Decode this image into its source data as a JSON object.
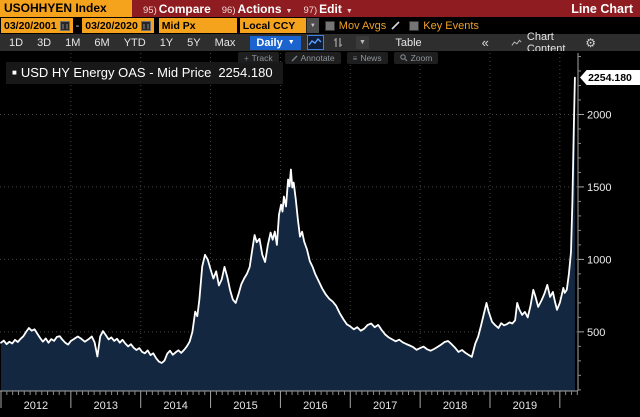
{
  "titlebar": {
    "security": "USOHHYEN Index",
    "menus": [
      {
        "num": "95)",
        "label": "Compare",
        "caret": false
      },
      {
        "num": "96)",
        "label": "Actions",
        "caret": true
      },
      {
        "num": "97)",
        "label": "Edit",
        "caret": true
      }
    ],
    "right_label": "Line Chart"
  },
  "controls": {
    "date_from": "03/20/2001",
    "date_sep": "-",
    "date_to": "03/20/2020",
    "price_field": "Mid Px",
    "currency": "Local CCY",
    "mov_avgs_label": "Mov Avgs",
    "key_events_label": "Key Events"
  },
  "toolbar": {
    "ranges": [
      "1D",
      "3D",
      "1M",
      "6M",
      "YTD",
      "1Y",
      "5Y",
      "Max"
    ],
    "period": "Daily",
    "table_label": "Table",
    "collapse_label": "«",
    "chart_content_label": "Chart Content",
    "icons": [
      "line-chart-icon",
      "bars-icon",
      "caret-down-icon",
      "gear-icon"
    ]
  },
  "chart_tools": [
    {
      "icon": "plus-icon",
      "label": "Track"
    },
    {
      "icon": "pencil-icon",
      "label": "Annotate"
    },
    {
      "icon": "news-lines-icon",
      "label": "News"
    },
    {
      "icon": "magnifier-icon",
      "label": "Zoom"
    }
  ],
  "legend": {
    "series_label": "USD HY Energy OAS - Mid Price",
    "value": "2254.180"
  },
  "colors": {
    "amber": "#f5a21c",
    "menu_red": "#8e1c20",
    "accent_blue": "#1b63cf",
    "area_fill": "#132840",
    "line": "#ffffff",
    "background": "#000000"
  },
  "chart_data": {
    "type": "area",
    "title": "USD HY Energy OAS - Mid Price",
    "last_value": 2254.18,
    "last_value_label": "2254.180",
    "x_unit": "decimal_year",
    "xlim": [
      2012.0,
      2020.26
    ],
    "ylim_displayed": [
      92,
      2424
    ],
    "yticks": [
      500,
      1000,
      1500,
      2000
    ],
    "xtick_years": [
      2012,
      2013,
      2014,
      2015,
      2016,
      2017,
      2018,
      2019
    ],
    "grid": "dotted",
    "legend_position": "top-left",
    "points": [
      [
        2012.0,
        425
      ],
      [
        2012.04,
        440
      ],
      [
        2012.08,
        415
      ],
      [
        2012.12,
        432
      ],
      [
        2012.16,
        420
      ],
      [
        2012.2,
        445
      ],
      [
        2012.24,
        430
      ],
      [
        2012.28,
        452
      ],
      [
        2012.32,
        470
      ],
      [
        2012.36,
        500
      ],
      [
        2012.4,
        527
      ],
      [
        2012.44,
        508
      ],
      [
        2012.48,
        518
      ],
      [
        2012.52,
        488
      ],
      [
        2012.56,
        458
      ],
      [
        2012.6,
        432
      ],
      [
        2012.64,
        455
      ],
      [
        2012.68,
        425
      ],
      [
        2012.72,
        450
      ],
      [
        2012.76,
        438
      ],
      [
        2012.8,
        465
      ],
      [
        2012.84,
        470
      ],
      [
        2012.88,
        445
      ],
      [
        2012.92,
        425
      ],
      [
        2012.96,
        412
      ],
      [
        2013.0,
        438
      ],
      [
        2013.05,
        452
      ],
      [
        2013.1,
        468
      ],
      [
        2013.15,
        452
      ],
      [
        2013.2,
        432
      ],
      [
        2013.25,
        448
      ],
      [
        2013.3,
        468
      ],
      [
        2013.34,
        428
      ],
      [
        2013.38,
        330
      ],
      [
        2013.42,
        468
      ],
      [
        2013.46,
        505
      ],
      [
        2013.5,
        478
      ],
      [
        2013.54,
        448
      ],
      [
        2013.58,
        462
      ],
      [
        2013.62,
        438
      ],
      [
        2013.66,
        452
      ],
      [
        2013.7,
        425
      ],
      [
        2013.74,
        445
      ],
      [
        2013.78,
        420
      ],
      [
        2013.82,
        400
      ],
      [
        2013.86,
        415
      ],
      [
        2013.9,
        390
      ],
      [
        2013.94,
        375
      ],
      [
        2013.98,
        388
      ],
      [
        2014.02,
        362
      ],
      [
        2014.06,
        352
      ],
      [
        2014.1,
        372
      ],
      [
        2014.14,
        340
      ],
      [
        2014.18,
        352
      ],
      [
        2014.22,
        318
      ],
      [
        2014.26,
        295
      ],
      [
        2014.3,
        285
      ],
      [
        2014.34,
        302
      ],
      [
        2014.38,
        350
      ],
      [
        2014.42,
        370
      ],
      [
        2014.46,
        342
      ],
      [
        2014.5,
        358
      ],
      [
        2014.54,
        373
      ],
      [
        2014.58,
        355
      ],
      [
        2014.62,
        375
      ],
      [
        2014.66,
        400
      ],
      [
        2014.7,
        432
      ],
      [
        2014.74,
        500
      ],
      [
        2014.78,
        640
      ],
      [
        2014.81,
        608
      ],
      [
        2014.84,
        725
      ],
      [
        2014.88,
        950
      ],
      [
        2014.92,
        1032
      ],
      [
        2014.96,
        998
      ],
      [
        2015.0,
        930
      ],
      [
        2015.04,
        868
      ],
      [
        2015.08,
        918
      ],
      [
        2015.12,
        820
      ],
      [
        2015.16,
        862
      ],
      [
        2015.2,
        948
      ],
      [
        2015.24,
        878
      ],
      [
        2015.28,
        788
      ],
      [
        2015.32,
        722
      ],
      [
        2015.36,
        700
      ],
      [
        2015.4,
        760
      ],
      [
        2015.44,
        828
      ],
      [
        2015.48,
        868
      ],
      [
        2015.52,
        900
      ],
      [
        2015.56,
        948
      ],
      [
        2015.6,
        1078
      ],
      [
        2015.63,
        1168
      ],
      [
        2015.66,
        1118
      ],
      [
        2015.7,
        1142
      ],
      [
        2015.74,
        1032
      ],
      [
        2015.78,
        982
      ],
      [
        2015.82,
        1098
      ],
      [
        2015.86,
        1185
      ],
      [
        2015.89,
        1136
      ],
      [
        2015.92,
        1192
      ],
      [
        2015.95,
        1101
      ],
      [
        2015.98,
        1309
      ],
      [
        2016.01,
        1378
      ],
      [
        2016.03,
        1330
      ],
      [
        2016.05,
        1434
      ],
      [
        2016.08,
        1365
      ],
      [
        2016.11,
        1551
      ],
      [
        2016.13,
        1503
      ],
      [
        2016.15,
        1620
      ],
      [
        2016.17,
        1496
      ],
      [
        2016.19,
        1530
      ],
      [
        2016.22,
        1413
      ],
      [
        2016.25,
        1274
      ],
      [
        2016.28,
        1157
      ],
      [
        2016.31,
        1191
      ],
      [
        2016.34,
        1122
      ],
      [
        2016.38,
        1068
      ],
      [
        2016.42,
        988
      ],
      [
        2016.46,
        948
      ],
      [
        2016.5,
        898
      ],
      [
        2016.55,
        848
      ],
      [
        2016.6,
        798
      ],
      [
        2016.65,
        758
      ],
      [
        2016.7,
        728
      ],
      [
        2016.75,
        708
      ],
      [
        2016.8,
        678
      ],
      [
        2016.85,
        628
      ],
      [
        2016.9,
        588
      ],
      [
        2016.95,
        552
      ],
      [
        2017.0,
        538
      ],
      [
        2017.05,
        518
      ],
      [
        2017.1,
        532
      ],
      [
        2017.15,
        508
      ],
      [
        2017.2,
        522
      ],
      [
        2017.25,
        548
      ],
      [
        2017.3,
        558
      ],
      [
        2017.35,
        532
      ],
      [
        2017.4,
        548
      ],
      [
        2017.45,
        512
      ],
      [
        2017.5,
        482
      ],
      [
        2017.55,
        462
      ],
      [
        2017.6,
        448
      ],
      [
        2017.65,
        435
      ],
      [
        2017.7,
        446
      ],
      [
        2017.75,
        428
      ],
      [
        2017.8,
        416
      ],
      [
        2017.85,
        406
      ],
      [
        2017.9,
        395
      ],
      [
        2017.95,
        376
      ],
      [
        2018.0,
        388
      ],
      [
        2018.05,
        398
      ],
      [
        2018.1,
        380
      ],
      [
        2018.15,
        370
      ],
      [
        2018.2,
        382
      ],
      [
        2018.25,
        396
      ],
      [
        2018.3,
        412
      ],
      [
        2018.35,
        430
      ],
      [
        2018.4,
        437
      ],
      [
        2018.45,
        415
      ],
      [
        2018.5,
        390
      ],
      [
        2018.55,
        362
      ],
      [
        2018.6,
        375
      ],
      [
        2018.65,
        355
      ],
      [
        2018.7,
        340
      ],
      [
        2018.74,
        327
      ],
      [
        2018.79,
        420
      ],
      [
        2018.83,
        465
      ],
      [
        2018.87,
        540
      ],
      [
        2018.91,
        620
      ],
      [
        2018.95,
        700
      ],
      [
        2018.98,
        640
      ],
      [
        2019.03,
        569
      ],
      [
        2019.07,
        548
      ],
      [
        2019.12,
        527
      ],
      [
        2019.16,
        560
      ],
      [
        2019.2,
        545
      ],
      [
        2019.24,
        552
      ],
      [
        2019.28,
        565
      ],
      [
        2019.32,
        558
      ],
      [
        2019.36,
        580
      ],
      [
        2019.39,
        700
      ],
      [
        2019.42,
        655
      ],
      [
        2019.46,
        617
      ],
      [
        2019.5,
        638
      ],
      [
        2019.54,
        600
      ],
      [
        2019.58,
        680
      ],
      [
        2019.62,
        790
      ],
      [
        2019.65,
        745
      ],
      [
        2019.69,
        672
      ],
      [
        2019.74,
        720
      ],
      [
        2019.78,
        765
      ],
      [
        2019.82,
        824
      ],
      [
        2019.86,
        741
      ],
      [
        2019.9,
        776
      ],
      [
        2019.93,
        710
      ],
      [
        2019.96,
        652
      ],
      [
        2020.0,
        700
      ],
      [
        2020.03,
        760
      ],
      [
        2020.05,
        803
      ],
      [
        2020.07,
        769
      ],
      [
        2020.1,
        790
      ],
      [
        2020.13,
        900
      ],
      [
        2020.16,
        1050
      ],
      [
        2020.18,
        1400
      ],
      [
        2020.2,
        1900
      ],
      [
        2020.215,
        2254.18
      ]
    ]
  }
}
